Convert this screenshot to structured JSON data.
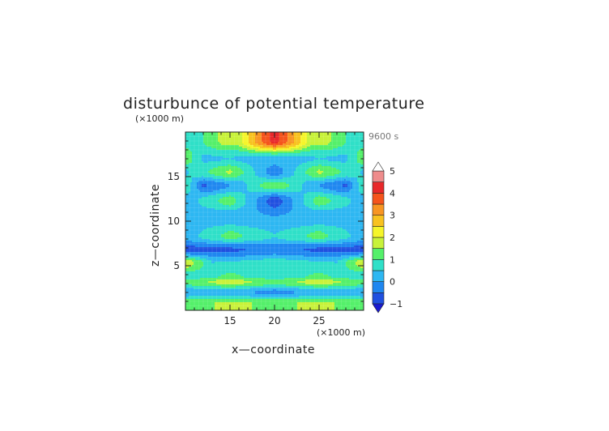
{
  "chart_data": {
    "type": "heatmap",
    "title": "disturbunce of potential temperature",
    "time_label": "9600 s",
    "xlabel": "x—coordinate",
    "ylabel": "z—coordinate",
    "x_unit": "(×1000 m)",
    "y_unit": "(×1000 m)",
    "xlim": [
      10,
      30
    ],
    "ylim": [
      0,
      20
    ],
    "x_ticks": [
      15,
      20,
      25
    ],
    "y_ticks": [
      5,
      10,
      15
    ],
    "x_tick_labels": [
      "15",
      "20",
      "25"
    ],
    "y_tick_labels": [
      "5",
      "10",
      "15"
    ],
    "colorbar": {
      "levels": [
        -1,
        -0.5,
        0,
        0.5,
        1,
        1.5,
        2,
        2.5,
        3,
        3.5,
        4,
        4.5,
        5
      ],
      "tick_values": [
        -1,
        0,
        1,
        2,
        3,
        4,
        5
      ],
      "tick_labels": [
        "−1",
        "0",
        "1",
        "2",
        "3",
        "4",
        "5"
      ],
      "colors": [
        "#1a1ad0",
        "#2050e0",
        "#1f87f0",
        "#2db7f2",
        "#2fe0c8",
        "#54f06a",
        "#c8f23a",
        "#f5f52a",
        "#f8c21f",
        "#f89522",
        "#f5541c",
        "#e8282a",
        "#ee8c8c",
        "#f8c4c4"
      ],
      "extend": "both"
    },
    "series": [
      {
        "z": 19.0,
        "x_profile": [
          [
            10,
            0.8
          ],
          [
            12,
            1.0
          ],
          [
            14,
            1.6
          ],
          [
            16,
            1.7
          ],
          [
            18,
            3.2
          ],
          [
            20,
            4.3
          ],
          [
            22,
            3.2
          ],
          [
            24,
            1.7
          ],
          [
            26,
            1.6
          ],
          [
            28,
            1.0
          ],
          [
            30,
            0.8
          ]
        ]
      },
      {
        "z": 17.0,
        "x_profile": [
          [
            10,
            1.4
          ],
          [
            12,
            0.4
          ],
          [
            15,
            0.5
          ],
          [
            18,
            0.3
          ],
          [
            20,
            0.3
          ],
          [
            22,
            0.3
          ],
          [
            25,
            0.5
          ],
          [
            28,
            0.4
          ],
          [
            30,
            1.4
          ]
        ]
      },
      {
        "z": 15.5,
        "x_profile": [
          [
            10,
            0.4
          ],
          [
            15,
            1.6
          ],
          [
            20,
            -0.4
          ],
          [
            25,
            1.6
          ],
          [
            30,
            0.4
          ]
        ]
      },
      {
        "z": 14.0,
        "x_profile": [
          [
            10,
            1.0
          ],
          [
            12,
            -0.6
          ],
          [
            16,
            0.2
          ],
          [
            19,
            1.2
          ],
          [
            20,
            1.2
          ],
          [
            21,
            1.2
          ],
          [
            24,
            0.2
          ],
          [
            28,
            -0.6
          ],
          [
            30,
            1.0
          ]
        ]
      },
      {
        "z": 12.3,
        "x_profile": [
          [
            10,
            0.2
          ],
          [
            15,
            1.3
          ],
          [
            20,
            -0.9
          ],
          [
            25,
            1.3
          ],
          [
            30,
            0.2
          ]
        ]
      },
      {
        "z": 10.5,
        "x_profile": [
          [
            10,
            0.2
          ],
          [
            15,
            0.1
          ],
          [
            20,
            0.0
          ],
          [
            25,
            0.1
          ],
          [
            30,
            0.2
          ]
        ]
      },
      {
        "z": 8.3,
        "x_profile": [
          [
            10,
            0.2
          ],
          [
            15,
            1.2
          ],
          [
            20,
            0.5
          ],
          [
            25,
            1.2
          ],
          [
            30,
            0.2
          ]
        ]
      },
      {
        "z": 6.8,
        "x_profile": [
          [
            10,
            -0.7
          ],
          [
            15,
            -0.6
          ],
          [
            20,
            -0.3
          ],
          [
            25,
            -0.6
          ],
          [
            30,
            -0.7
          ]
        ]
      },
      {
        "z": 5.3,
        "x_profile": [
          [
            10,
            2.0
          ],
          [
            13,
            0.5
          ],
          [
            17,
            0.6
          ],
          [
            20,
            0.8
          ],
          [
            23,
            0.6
          ],
          [
            27,
            0.5
          ],
          [
            30,
            2.0
          ]
        ]
      },
      {
        "z": 3.8,
        "x_profile": [
          [
            10,
            0.6
          ],
          [
            15,
            1.1
          ],
          [
            20,
            0.7
          ],
          [
            25,
            1.1
          ],
          [
            30,
            0.6
          ]
        ]
      },
      {
        "z": 3.2,
        "x_profile": [
          [
            10,
            1.2
          ],
          [
            15,
            1.8
          ],
          [
            20,
            1.2
          ],
          [
            25,
            1.8
          ],
          [
            30,
            1.2
          ]
        ]
      },
      {
        "z": 2.0,
        "x_profile": [
          [
            10,
            0.1
          ],
          [
            15,
            0.2
          ],
          [
            20,
            -0.2
          ],
          [
            25,
            0.2
          ],
          [
            30,
            0.1
          ]
        ]
      },
      {
        "z": 0.8,
        "x_profile": [
          [
            10,
            1.3
          ],
          [
            15,
            1.6
          ],
          [
            20,
            1.4
          ],
          [
            25,
            1.6
          ],
          [
            30,
            1.3
          ]
        ]
      }
    ],
    "grid": true,
    "legend": "colorbar-right"
  }
}
